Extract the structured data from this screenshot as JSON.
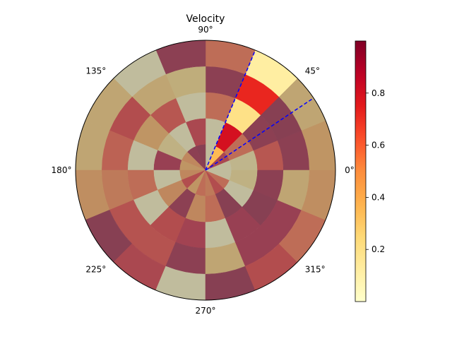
{
  "chart_data": {
    "type": "heatmap",
    "projection": "polar",
    "title": "Velocity",
    "colormap": "YlOrRd",
    "sector_count": 16,
    "ring_count": 5,
    "r_range": [
      0,
      5
    ],
    "cell_alpha_outside_highlight": 0.5,
    "highlight_sector": {
      "theta_start_deg": 33.75,
      "theta_end_deg": 67.5,
      "line_color": "#0000ff",
      "line_style": "dashed"
    },
    "angle_ticks": [
      "0°",
      "45°",
      "90°",
      "135°",
      "180°",
      "225°",
      "270°",
      "315°"
    ],
    "colorbar": {
      "vmin": 0.0,
      "vmax": 1.0,
      "ticks": [
        0.2,
        0.4,
        0.6,
        0.8
      ],
      "tick_labels": [
        "0.2",
        "0.4",
        "0.6",
        "0.8"
      ]
    },
    "sectors": [
      {
        "theta_start_deg": 0.0,
        "values": [
          0.05,
          0.15,
          0.7,
          0.95,
          0.4
        ]
      },
      {
        "theta_start_deg": 22.5,
        "values": [
          0.8,
          0.6,
          0.95,
          0.97,
          0.3
        ]
      },
      {
        "theta_start_deg": 45.0,
        "values": [
          0.35,
          0.8,
          0.2,
          0.72,
          0.12
        ]
      },
      {
        "theta_start_deg": 67.5,
        "values": [
          0.05,
          0.05,
          0.6,
          0.95,
          0.6
        ]
      },
      {
        "theta_start_deg": 90.0,
        "values": [
          0.97,
          0.8,
          0.05,
          0.25,
          0.95
        ]
      },
      {
        "theta_start_deg": 112.5,
        "values": [
          0.95,
          0.05,
          0.7,
          0.3,
          0.05
        ]
      },
      {
        "theta_start_deg": 135.0,
        "values": [
          0.5,
          0.2,
          0.4,
          0.75,
          0.3
        ]
      },
      {
        "theta_start_deg": 157.5,
        "values": [
          0.4,
          0.9,
          0.05,
          0.65,
          0.3
        ]
      },
      {
        "theta_start_deg": 180.0,
        "values": [
          0.5,
          0.05,
          0.6,
          0.55,
          0.45
        ]
      },
      {
        "theta_start_deg": 202.5,
        "values": [
          0.75,
          0.5,
          0.05,
          0.72,
          0.97
        ]
      },
      {
        "theta_start_deg": 225.0,
        "values": [
          0.4,
          0.95,
          0.75,
          0.72,
          0.8
        ]
      },
      {
        "theta_start_deg": 247.5,
        "values": [
          0.6,
          0.5,
          0.85,
          0.95,
          0.05
        ]
      },
      {
        "theta_start_deg": 270.0,
        "values": [
          0.55,
          0.6,
          0.05,
          0.3,
          0.97
        ]
      },
      {
        "theta_start_deg": 292.5,
        "values": [
          0.75,
          0.97,
          0.9,
          0.9,
          0.75
        ]
      },
      {
        "theta_start_deg": 315.0,
        "values": [
          0.6,
          0.05,
          0.97,
          0.9,
          0.6
        ]
      },
      {
        "theta_start_deg": 337.5,
        "values": [
          0.05,
          0.2,
          0.95,
          0.3,
          0.45
        ]
      }
    ]
  }
}
